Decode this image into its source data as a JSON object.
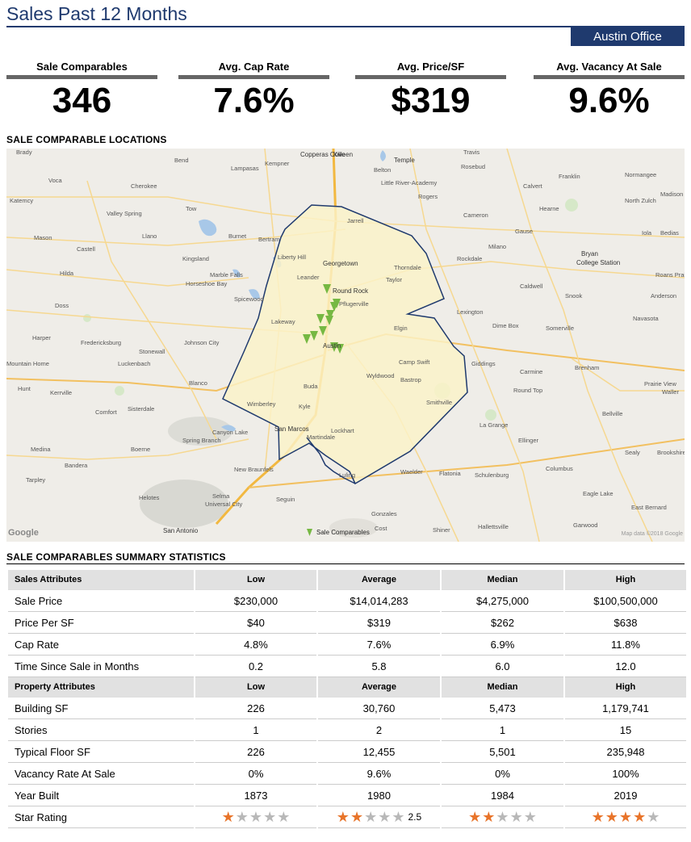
{
  "header": {
    "title": "Sales Past 12 Months",
    "office": "Austin Office"
  },
  "kpis": [
    {
      "label": "Sale Comparables",
      "value": "346"
    },
    {
      "label": "Avg. Cap Rate",
      "value": "7.6%"
    },
    {
      "label": "Avg. Price/SF",
      "value": "$319"
    },
    {
      "label": "Avg. Vacancy At Sale",
      "value": "9.6%"
    }
  ],
  "map": {
    "section_title": "SALE COMPARABLE LOCATIONS",
    "legend": "Sale Comparables",
    "attribution": "Map data ©2018 Google",
    "logo": "Google",
    "marker_color": "#76b843",
    "polygon_color": "#1f3a6e",
    "places": {
      "brady": "Brady",
      "killeen": "Killeen",
      "travis": "Travis",
      "copperas": "Copperas Cove",
      "bend": "Bend",
      "kempner": "Kempner",
      "lampasas": "Lampasas",
      "temple": "Temple",
      "belton": "Belton",
      "rosebud": "Rosebud",
      "franklin": "Franklin",
      "normangee": "Normangee",
      "yoca": "Voca",
      "cherokee": "Cherokee",
      "calvert": "Calvert",
      "little": "Little River-Academy",
      "rogers": "Rogers",
      "madison": "Madison",
      "katemcy": "Katemcy",
      "tow": "Tow",
      "hearne": "Hearne",
      "northzulch": "North Zulch",
      "valley": "Valley Spring",
      "jarrell": "Jarrell",
      "cameron": "Cameron",
      "mason": "Mason",
      "llano": "Llano",
      "burnet": "Burnet",
      "bertram": "Bertram",
      "gause": "Gause",
      "iola": "Iola",
      "bedias": "Bedias",
      "castell": "Castell",
      "kingsland": "Kingsland",
      "libertyhill": "Liberty Hill",
      "milano": "Milano",
      "bryan": "Bryan",
      "college": "College Station",
      "georgetown": "Georgetown",
      "thorndale": "Thorndale",
      "rockdale": "Rockdale",
      "hilda": "Hilda",
      "marblefalls": "Marble Falls",
      "horseshoe": "Horseshoe Bay",
      "leander": "Leander",
      "taylor": "Taylor",
      "caldwell": "Caldwell",
      "roans": "Roans Prairie",
      "roundrock": "Round Rock",
      "snook": "Snook",
      "anderson": "Anderson",
      "doss": "Doss",
      "spicewood": "Spicewood",
      "pflugerville": "Pflugerville",
      "lexington": "Lexington",
      "navasota": "Navasota",
      "lakeway": "Lakeway",
      "elgin": "Elgin",
      "dimebox": "Dime Box",
      "somerville": "Somerville",
      "harper": "Harper",
      "fredericksburg": "Fredericksburg",
      "johnson": "Johnson City",
      "austin": "Austin",
      "stonewall": "Stonewall",
      "luckenbach": "Luckenbach",
      "campswift": "Camp Swift",
      "giddings": "Giddings",
      "brenham": "Brenham",
      "mountain": "Mountain Home",
      "wyldwood": "Wyldwood",
      "bastrop": "Bastrop",
      "carmine": "Carmine",
      "prairie": "Prairie View",
      "waller": "Waller",
      "blanco": "Blanco",
      "buda": "Buda",
      "roundtop": "Round Top",
      "hunt": "Hunt",
      "kerrville": "Kerrville",
      "comfort": "Comfort",
      "sisterdale": "Sisterdale",
      "wimberley": "Wimberley",
      "kyle": "Kyle",
      "smithville": "Smithville",
      "bellville": "Bellville",
      "lagrange": "La Grange",
      "canyon": "Canyon Lake",
      "springbranch": "Spring Branch",
      "sanmarcos": "San Marcos",
      "lockhart": "Lockhart",
      "martindale": "Martindale",
      "ellinger": "Ellinger",
      "medina": "Medina",
      "boerne": "Boerne",
      "sealy": "Sealy",
      "brookshire": "Brookshire",
      "bandera": "Bandera",
      "newbraunfels": "New Braunfels",
      "luling": "Luling",
      "waelder": "Waelder",
      "flatonia": "Flatonia",
      "schulenburg": "Schulenburg",
      "columbus": "Columbus",
      "tarpley": "Tarpley",
      "helotes": "Helotes",
      "selma": "Selma",
      "universal": "Universal City",
      "seguin": "Seguin",
      "eaglelake": "Eagle Lake",
      "eastbernard": "East Bernard",
      "gonzales": "Gonzales",
      "sanantonio": "San Antonio",
      "shiner": "Shiner",
      "hallettsville": "Hallettsville",
      "garwood": "Garwood",
      "cost": "Cost"
    }
  },
  "summary": {
    "section_title": "SALE COMPARABLES SUMMARY STATISTICS",
    "sales_header": [
      "Sales Attributes",
      "Low",
      "Average",
      "Median",
      "High"
    ],
    "sales_rows": [
      [
        "Sale Price",
        "$230,000",
        "$14,014,283",
        "$4,275,000",
        "$100,500,000"
      ],
      [
        "Price Per SF",
        "$40",
        "$319",
        "$262",
        "$638"
      ],
      [
        "Cap Rate",
        "4.8%",
        "7.6%",
        "6.9%",
        "11.8%"
      ],
      [
        "Time Since Sale in Months",
        "0.2",
        "5.8",
        "6.0",
        "12.0"
      ]
    ],
    "property_header": [
      "Property Attributes",
      "Low",
      "Average",
      "Median",
      "High"
    ],
    "property_rows": [
      [
        "Building SF",
        "226",
        "30,760",
        "5,473",
        "1,179,741"
      ],
      [
        "Stories",
        "1",
        "2",
        "1",
        "15"
      ],
      [
        "Typical Floor SF",
        "226",
        "12,455",
        "5,501",
        "235,948"
      ],
      [
        "Vacancy Rate At Sale",
        "0%",
        "9.6%",
        "0%",
        "100%"
      ],
      [
        "Year Built",
        "1873",
        "1980",
        "1984",
        "2019"
      ]
    ],
    "star_row": {
      "label": "Star Rating",
      "ratings": [
        1,
        2.5,
        2,
        4
      ],
      "avg_text": "2.5",
      "max": 5,
      "on_color": "#e8742a",
      "off_color": "#b8b8b8"
    }
  }
}
